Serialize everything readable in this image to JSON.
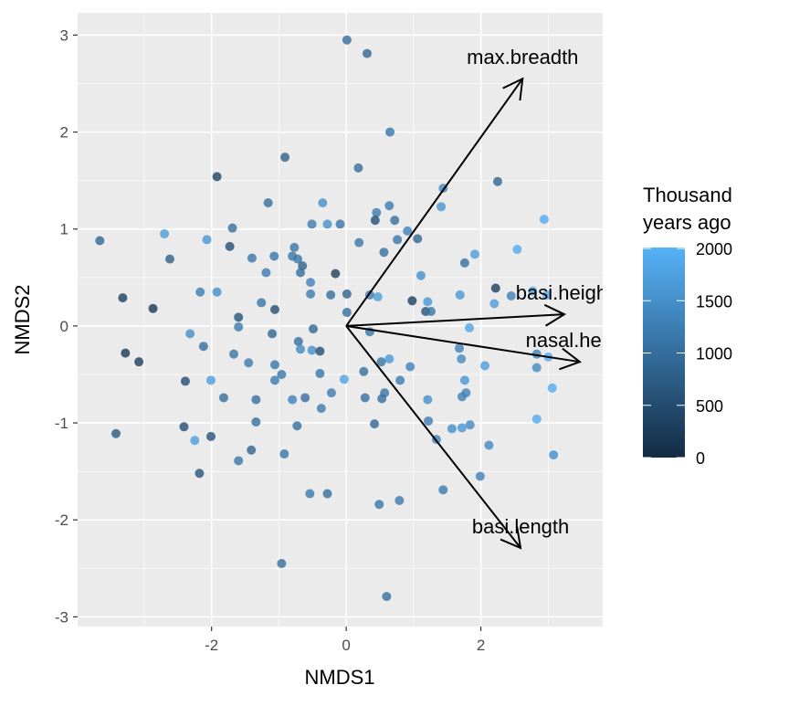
{
  "chart_data": {
    "type": "scatter",
    "title": "",
    "xlabel": "NMDS1",
    "ylabel": "NMDS2",
    "xlim": [
      -3.99,
      3.81
    ],
    "ylim": [
      -3.1,
      3.23
    ],
    "x_ticks": [
      -2,
      0,
      2
    ],
    "y_ticks": [
      -3,
      -2,
      -1,
      0,
      1,
      2,
      3
    ],
    "grid": true,
    "legend": {
      "title_lines": [
        "Thousand",
        "years ago"
      ],
      "type": "colorbar",
      "placement": "right",
      "range": [
        0,
        2000
      ],
      "ticks": [
        0,
        500,
        1000,
        1500,
        2000
      ],
      "low_color": "#132B43",
      "high_color": "#56B1F7"
    },
    "vectors": [
      {
        "label": "max.breadth",
        "x": 2.62,
        "y": 2.55
      },
      {
        "label": "basi.height",
        "x": 3.24,
        "y": 0.12
      },
      {
        "label": "nasal.height",
        "x": 3.47,
        "y": -0.37
      },
      {
        "label": "basi.length",
        "x": 2.59,
        "y": -2.29
      }
    ],
    "points": [
      [
        -3.66,
        0.88,
        900
      ],
      [
        -3.32,
        0.29,
        300
      ],
      [
        -2.87,
        0.18,
        200
      ],
      [
        -3.28,
        -0.28,
        200
      ],
      [
        -3.08,
        -0.37,
        300
      ],
      [
        -3.42,
        -1.11,
        700
      ],
      [
        -2.62,
        0.69,
        800
      ],
      [
        -2.7,
        0.95,
        1700
      ],
      [
        -1.92,
        1.54,
        400
      ],
      [
        -0.91,
        1.74,
        800
      ],
      [
        0.01,
        2.95,
        1000
      ],
      [
        0.31,
        2.81,
        900
      ],
      [
        0.65,
        2.0,
        1100
      ],
      [
        0.18,
        1.63,
        1000
      ],
      [
        2.25,
        1.49,
        900
      ],
      [
        1.44,
        1.42,
        1400
      ],
      [
        1.41,
        1.23,
        1600
      ],
      [
        2.94,
        1.1,
        1900
      ],
      [
        2.54,
        0.79,
        1900
      ],
      [
        1.91,
        0.74,
        1700
      ],
      [
        1.76,
        0.65,
        1000
      ],
      [
        2.22,
        0.39,
        300
      ],
      [
        -1.16,
        1.27,
        1000
      ],
      [
        -1.69,
        1.01,
        1000
      ],
      [
        -2.07,
        0.89,
        1600
      ],
      [
        -1.73,
        0.82,
        500
      ],
      [
        -1.4,
        0.7,
        1100
      ],
      [
        -1.07,
        0.72,
        1100
      ],
      [
        -0.77,
        0.81,
        1100
      ],
      [
        -0.8,
        0.72,
        1100
      ],
      [
        -0.72,
        0.69,
        1100
      ],
      [
        -1.19,
        0.55,
        1200
      ],
      [
        -0.65,
        0.62,
        800
      ],
      [
        -0.68,
        0.55,
        1000
      ],
      [
        -0.51,
        1.05,
        1200
      ],
      [
        -0.35,
        1.27,
        1500
      ],
      [
        -0.28,
        1.05,
        1500
      ],
      [
        -0.09,
        1.05,
        1100
      ],
      [
        -0.53,
        0.45,
        1300
      ],
      [
        -0.53,
        0.33,
        1200
      ],
      [
        -0.23,
        0.32,
        1000
      ],
      [
        -0.16,
        0.54,
        300
      ],
      [
        0.01,
        0.33,
        800
      ],
      [
        0.01,
        0.14,
        1000
      ],
      [
        0.35,
        0.32,
        1200
      ],
      [
        0.47,
        0.3,
        1700
      ],
      [
        0.45,
        1.17,
        1200
      ],
      [
        0.43,
        1.09,
        500
      ],
      [
        0.64,
        1.24,
        1200
      ],
      [
        0.72,
        1.09,
        1000
      ],
      [
        0.19,
        0.86,
        1100
      ],
      [
        0.56,
        0.76,
        1000
      ],
      [
        0.76,
        0.89,
        1100
      ],
      [
        0.91,
        0.98,
        1300
      ],
      [
        1.06,
        0.9,
        900
      ],
      [
        1.11,
        0.52,
        1500
      ],
      [
        0.98,
        0.26,
        300
      ],
      [
        1.21,
        0.25,
        1600
      ],
      [
        1.18,
        0.15,
        600
      ],
      [
        1.26,
        0.15,
        1100
      ],
      [
        1.69,
        0.32,
        1600
      ],
      [
        2.2,
        0.23,
        1700
      ],
      [
        2.45,
        0.31,
        1300
      ],
      [
        2.77,
        0.36,
        1800
      ],
      [
        2.98,
        0.32,
        1900
      ],
      [
        1.83,
        -0.02,
        1800
      ],
      [
        2.83,
        -0.29,
        1300
      ],
      [
        3.0,
        -0.32,
        1900
      ],
      [
        2.06,
        -0.41,
        1700
      ],
      [
        2.83,
        -0.43,
        1400
      ],
      [
        3.06,
        -0.64,
        1900
      ],
      [
        2.83,
        -0.96,
        1900
      ],
      [
        3.08,
        -1.33,
        1500
      ],
      [
        2.12,
        -1.23,
        1400
      ],
      [
        1.99,
        -1.55,
        1300
      ],
      [
        1.84,
        -1.02,
        1400
      ],
      [
        1.72,
        -1.05,
        1600
      ],
      [
        1.78,
        -0.69,
        1300
      ],
      [
        1.72,
        -0.73,
        1300
      ],
      [
        1.76,
        -0.56,
        1600
      ],
      [
        1.71,
        -0.34,
        1400
      ],
      [
        1.68,
        -0.23,
        1300
      ],
      [
        0.95,
        -0.42,
        1300
      ],
      [
        0.64,
        -0.34,
        1600
      ],
      [
        0.52,
        -0.37,
        1100
      ],
      [
        0.26,
        -0.47,
        1000
      ],
      [
        0.35,
        -0.06,
        1100
      ],
      [
        0.8,
        -0.56,
        1200
      ],
      [
        0.57,
        -0.69,
        1100
      ],
      [
        0.28,
        -0.74,
        1000
      ],
      [
        0.53,
        -0.75,
        1000
      ],
      [
        0.42,
        -1.01,
        900
      ],
      [
        1.21,
        -0.76,
        1500
      ],
      [
        1.22,
        -0.98,
        1200
      ],
      [
        1.34,
        -1.17,
        1300
      ],
      [
        1.57,
        -1.06,
        1500
      ],
      [
        1.44,
        -1.69,
        1200
      ],
      [
        0.79,
        -1.8,
        1200
      ],
      [
        0.49,
        -1.84,
        1100
      ],
      [
        0.6,
        -2.79,
        1000
      ],
      [
        -0.03,
        -0.55,
        1800
      ],
      [
        -0.22,
        -0.69,
        1200
      ],
      [
        -0.39,
        -0.49,
        1100
      ],
      [
        -0.49,
        -0.03,
        900
      ],
      [
        -0.71,
        -0.16,
        1000
      ],
      [
        -0.68,
        -0.24,
        1400
      ],
      [
        -0.51,
        -0.25,
        1500
      ],
      [
        -0.39,
        -0.26,
        500
      ],
      [
        -0.37,
        -0.85,
        1200
      ],
      [
        -0.61,
        -0.74,
        1000
      ],
      [
        -0.8,
        -0.76,
        1300
      ],
      [
        -0.96,
        -0.5,
        1100
      ],
      [
        -1.1,
        -0.08,
        900
      ],
      [
        -1.06,
        0.17,
        500
      ],
      [
        -1.06,
        -0.4,
        1100
      ],
      [
        -1.06,
        -0.56,
        1200
      ],
      [
        -1.26,
        0.24,
        1100
      ],
      [
        -1.6,
        0.09,
        600
      ],
      [
        -1.6,
        -0.01,
        1200
      ],
      [
        -1.67,
        -0.29,
        1100
      ],
      [
        -1.45,
        -0.38,
        1200
      ],
      [
        -1.34,
        -0.76,
        1000
      ],
      [
        -1.34,
        -0.99,
        1000
      ],
      [
        -1.41,
        -1.28,
        900
      ],
      [
        -1.6,
        -1.39,
        1100
      ],
      [
        -1.82,
        -0.74,
        1000
      ],
      [
        -2.12,
        -0.21,
        1000
      ],
      [
        -2.32,
        -0.08,
        1500
      ],
      [
        -2.17,
        0.35,
        1200
      ],
      [
        -1.92,
        0.35,
        1500
      ],
      [
        -2.01,
        -0.56,
        1700
      ],
      [
        -2.39,
        -0.57,
        500
      ],
      [
        -2.41,
        -1.04,
        500
      ],
      [
        -2.25,
        -1.18,
        1700
      ],
      [
        -2.01,
        -1.14,
        600
      ],
      [
        -2.18,
        -1.52,
        600
      ],
      [
        -0.73,
        -1.03,
        1000
      ],
      [
        -0.92,
        -1.32,
        1100
      ],
      [
        -0.54,
        -1.73,
        1200
      ],
      [
        -0.28,
        -1.73,
        1000
      ],
      [
        -0.96,
        -2.45,
        1000
      ]
    ]
  }
}
